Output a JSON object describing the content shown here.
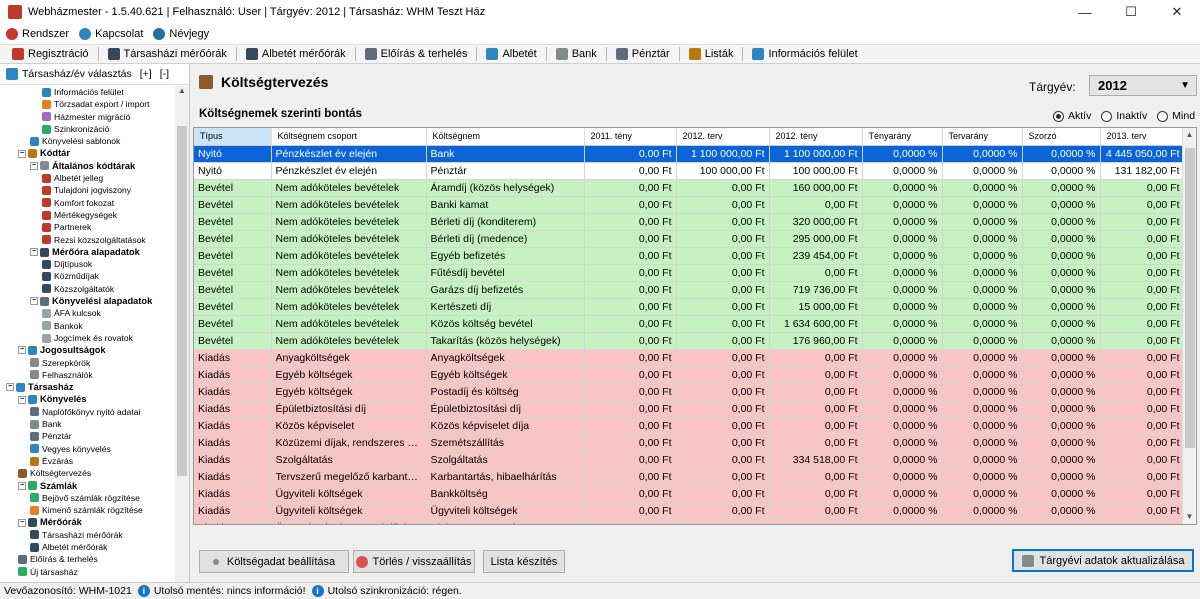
{
  "window": {
    "title": "Webházmester - 1.5.40.621 | Felhasználó: User | Tárgyév: 2012 | Társasház: WHM Teszt Ház",
    "minimize": "—",
    "maximize": "☐",
    "close": "✕"
  },
  "menu": [
    {
      "label": "Rendszer",
      "icon": "system-icon",
      "color": "#c0392b"
    },
    {
      "label": "Kapcsolat",
      "icon": "contact-icon",
      "color": "#2e86c1"
    },
    {
      "label": "Névjegy",
      "icon": "about-icon",
      "color": "#2471a3"
    }
  ],
  "toolbar": [
    {
      "label": "Regisztráció",
      "icon": "registration-icon",
      "color": "#c0392b"
    },
    {
      "label": "Társasházi mérőórák",
      "icon": "meter-icon",
      "color": "#34495e"
    },
    {
      "label": "Albetét mérőórák",
      "icon": "unit-meter-icon",
      "color": "#34495e"
    },
    {
      "label": "Előírás & terhelés",
      "icon": "charges-icon",
      "color": "#5d6d7e"
    },
    {
      "label": "Albetét",
      "icon": "unit-icon",
      "color": "#2e86c1"
    },
    {
      "label": "Bank",
      "icon": "bank-icon",
      "color": "#7f8c8d"
    },
    {
      "label": "Pénztár",
      "icon": "cashbox-icon",
      "color": "#5d6d7e"
    },
    {
      "label": "Listák",
      "icon": "lists-icon",
      "color": "#b9770e"
    },
    {
      "label": "Információs felület",
      "icon": "info-panel-icon",
      "color": "#2e86c1"
    }
  ],
  "left_panel": {
    "header": "Társasház/év  választás",
    "expand_btn": "[+]",
    "collapse_btn": "[-]",
    "tree": [
      {
        "label": "Információs felület",
        "level": 3,
        "color": "#2e86c1"
      },
      {
        "label": "Törzsadat export / import",
        "level": 3,
        "color": "#e67e22"
      },
      {
        "label": "Házmester migráció",
        "level": 3,
        "color": "#a569bd"
      },
      {
        "label": "Szinkronizáció",
        "level": 3,
        "color": "#27ae60"
      },
      {
        "label": "Könyvelési sablonok",
        "level": 2,
        "color": "#2e86c1"
      },
      {
        "label": "Kódtár",
        "level": 1,
        "bold": true,
        "color": "#b9770e"
      },
      {
        "label": "Általános kódtárak",
        "level": 2,
        "bold": true,
        "color": "#7f8c8d"
      },
      {
        "label": "Albetét jelleg",
        "level": 3,
        "color": "#c0392b"
      },
      {
        "label": "Tulajdoni jogviszony",
        "level": 3,
        "color": "#c0392b"
      },
      {
        "label": "Komfort fokozat",
        "level": 3,
        "color": "#c0392b"
      },
      {
        "label": "Mértékegységek",
        "level": 3,
        "color": "#c0392b"
      },
      {
        "label": "Partnerek",
        "level": 3,
        "color": "#c0392b"
      },
      {
        "label": "Rezsi közszolgáltatások",
        "level": 3,
        "color": "#c0392b"
      },
      {
        "label": "Mérőóra alapadatok",
        "level": 2,
        "bold": true,
        "color": "#34495e"
      },
      {
        "label": "Díjtípusok",
        "level": 3,
        "color": "#34495e"
      },
      {
        "label": "Közműdíjak",
        "level": 3,
        "color": "#34495e"
      },
      {
        "label": "Közszolgáltatók",
        "level": 3,
        "color": "#34495e"
      },
      {
        "label": "Könyvelési alapadatok",
        "level": 2,
        "bold": true,
        "color": "#5d6d7e"
      },
      {
        "label": "ÁFA kulcsok",
        "level": 3,
        "color": "#95a5a6"
      },
      {
        "label": "Bankok",
        "level": 3,
        "color": "#95a5a6"
      },
      {
        "label": "Jogcímek és rovatok",
        "level": 3,
        "color": "#95a5a6"
      },
      {
        "label": "Jogosultságok",
        "level": 1,
        "bold": true,
        "color": "#2e86c1"
      },
      {
        "label": "Szerepkörök",
        "level": 2,
        "color": "#7f8c8d"
      },
      {
        "label": "Felhasználók",
        "level": 2,
        "color": "#7f8c8d"
      },
      {
        "label": "Társasház",
        "level": 0,
        "bold": true,
        "color": "#2e86c1"
      },
      {
        "label": "Könyvelés",
        "level": 1,
        "bold": true,
        "color": "#2e86c1"
      },
      {
        "label": "Naplófőkönyv nyitó adatai",
        "level": 2,
        "color": "#5d6d7e"
      },
      {
        "label": "Bank",
        "level": 2,
        "color": "#7f8c8d"
      },
      {
        "label": "Pénztár",
        "level": 2,
        "color": "#5d6d7e"
      },
      {
        "label": "Vegyes könyvelés",
        "level": 2,
        "color": "#2e86c1"
      },
      {
        "label": "Évzárás",
        "level": 2,
        "color": "#b9770e"
      },
      {
        "label": "Költségtervezés",
        "level": 1,
        "color": "#8a5a2b"
      },
      {
        "label": "Számlák",
        "level": 1,
        "bold": true,
        "color": "#27ae60"
      },
      {
        "label": "Bejövő számlák rögzítése",
        "level": 2,
        "color": "#27ae60"
      },
      {
        "label": "Kimenő számlák rögzítése",
        "level": 2,
        "color": "#e67e22"
      },
      {
        "label": "Mérőórák",
        "level": 1,
        "bold": true,
        "color": "#34495e"
      },
      {
        "label": "Társasházi mérőórák",
        "level": 2,
        "color": "#34495e"
      },
      {
        "label": "Albetét mérőórák",
        "level": 2,
        "color": "#34495e"
      },
      {
        "label": "Előírás & terhelés",
        "level": 1,
        "color": "#5d6d7e"
      },
      {
        "label": "Új társasház",
        "level": 1,
        "color": "#27ae60"
      }
    ]
  },
  "main": {
    "title": "Költségtervezés",
    "year_label": "Tárgyév:",
    "year_value": "2012",
    "subtitle": "Költségnemek szerinti bontás",
    "radios": [
      {
        "label": "Aktív",
        "checked": true
      },
      {
        "label": "Inaktív",
        "checked": false
      },
      {
        "label": "Mind",
        "checked": false
      }
    ]
  },
  "grid": {
    "columns": [
      "Típus",
      "Költségnem csoport",
      "Költségnem",
      "2011. tény",
      "2012. terv",
      "2012. tény",
      "Tényarány",
      "Tervarány",
      "Szorzó",
      "2013. terv"
    ],
    "rows": [
      {
        "kind": "nyito",
        "selected": true,
        "cells": [
          "Nyitó",
          "Pénzkészlet év elején",
          "Bank",
          "0,00 Ft",
          "1 100 000,00 Ft",
          "1 100 000,00 Ft",
          "0,0000 %",
          "0,0000 %",
          "0,0000 %",
          "4 445 050,00 Ft"
        ]
      },
      {
        "kind": "nyito",
        "cells": [
          "Nyitó",
          "Pénzkészlet év elején",
          "Pénztár",
          "0,00 Ft",
          "100 000,00 Ft",
          "100 000,00 Ft",
          "0,0000 %",
          "0,0000 %",
          "0,0000 %",
          "131 182,00 Ft"
        ]
      },
      {
        "kind": "bevetel",
        "cells": [
          "Bevétel",
          "Nem adóköteles bevételek",
          "Áramdíj (közös helységek)",
          "0,00 Ft",
          "0,00 Ft",
          "160 000,00 Ft",
          "0,0000 %",
          "0,0000 %",
          "0,0000 %",
          "0,00 Ft"
        ]
      },
      {
        "kind": "bevetel",
        "cells": [
          "Bevétel",
          "Nem adóköteles bevételek",
          "Banki kamat",
          "0,00 Ft",
          "0,00 Ft",
          "0,00 Ft",
          "0,0000 %",
          "0,0000 %",
          "0,0000 %",
          "0,00 Ft"
        ]
      },
      {
        "kind": "bevetel",
        "cells": [
          "Bevétel",
          "Nem adóköteles bevételek",
          "Bérleti díj (konditerem)",
          "0,00 Ft",
          "0,00 Ft",
          "320 000,00 Ft",
          "0,0000 %",
          "0,0000 %",
          "0,0000 %",
          "0,00 Ft"
        ]
      },
      {
        "kind": "bevetel",
        "cells": [
          "Bevétel",
          "Nem adóköteles bevételek",
          "Bérleti díj (medence)",
          "0,00 Ft",
          "0,00 Ft",
          "295 000,00 Ft",
          "0,0000 %",
          "0,0000 %",
          "0,0000 %",
          "0,00 Ft"
        ]
      },
      {
        "kind": "bevetel",
        "cells": [
          "Bevétel",
          "Nem adóköteles bevételek",
          "Egyéb befizetés",
          "0,00 Ft",
          "0,00 Ft",
          "239 454,00 Ft",
          "0,0000 %",
          "0,0000 %",
          "0,0000 %",
          "0,00 Ft"
        ]
      },
      {
        "kind": "bevetel",
        "cells": [
          "Bevétel",
          "Nem adóköteles bevételek",
          "Fűtésdíj bevétel",
          "0,00 Ft",
          "0,00 Ft",
          "0,00 Ft",
          "0,0000 %",
          "0,0000 %",
          "0,0000 %",
          "0,00 Ft"
        ]
      },
      {
        "kind": "bevetel",
        "cells": [
          "Bevétel",
          "Nem adóköteles bevételek",
          "Garázs díj befizetés",
          "0,00 Ft",
          "0,00 Ft",
          "719 736,00 Ft",
          "0,0000 %",
          "0,0000 %",
          "0,0000 %",
          "0,00 Ft"
        ]
      },
      {
        "kind": "bevetel",
        "cells": [
          "Bevétel",
          "Nem adóköteles bevételek",
          "Kertészeti díj",
          "0,00 Ft",
          "0,00 Ft",
          "15 000,00 Ft",
          "0,0000 %",
          "0,0000 %",
          "0,0000 %",
          "0,00 Ft"
        ]
      },
      {
        "kind": "bevetel",
        "cells": [
          "Bevétel",
          "Nem adóköteles bevételek",
          "Közös költség bevétel",
          "0,00 Ft",
          "0,00 Ft",
          "1 634 600,00 Ft",
          "0,0000 %",
          "0,0000 %",
          "0,0000 %",
          "0,00 Ft"
        ]
      },
      {
        "kind": "bevetel",
        "cells": [
          "Bevétel",
          "Nem adóköteles bevételek",
          "Takarítás (közös helységek)",
          "0,00 Ft",
          "0,00 Ft",
          "176 960,00 Ft",
          "0,0000 %",
          "0,0000 %",
          "0,0000 %",
          "0,00 Ft"
        ]
      },
      {
        "kind": "kiadas",
        "cells": [
          "Kiadás",
          "Anyagköltségek",
          "Anyagköltségek",
          "0,00 Ft",
          "0,00 Ft",
          "0,00 Ft",
          "0,0000 %",
          "0,0000 %",
          "0,0000 %",
          "0,00 Ft"
        ]
      },
      {
        "kind": "kiadas",
        "cells": [
          "Kiadás",
          "Egyéb költségek",
          "Egyéb költségek",
          "0,00 Ft",
          "0,00 Ft",
          "0,00 Ft",
          "0,0000 %",
          "0,0000 %",
          "0,0000 %",
          "0,00 Ft"
        ]
      },
      {
        "kind": "kiadas",
        "cells": [
          "Kiadás",
          "Egyéb költségek",
          "Postadíj és költség",
          "0,00 Ft",
          "0,00 Ft",
          "0,00 Ft",
          "0,0000 %",
          "0,0000 %",
          "0,0000 %",
          "0,00 Ft"
        ]
      },
      {
        "kind": "kiadas",
        "cells": [
          "Kiadás",
          "Épületbiztosítási díj",
          "Épületbiztosítási díj",
          "0,00 Ft",
          "0,00 Ft",
          "0,00 Ft",
          "0,0000 %",
          "0,0000 %",
          "0,0000 %",
          "0,00 Ft"
        ]
      },
      {
        "kind": "kiadas",
        "cells": [
          "Kiadás",
          "Közös képviselet",
          "Közös képviselet díja",
          "0,00 Ft",
          "0,00 Ft",
          "0,00 Ft",
          "0,0000 %",
          "0,0000 %",
          "0,0000 %",
          "0,00 Ft"
        ]
      },
      {
        "kind": "kiadas",
        "cells": [
          "Kiadás",
          "Közüzemi díjak, rendszeres köl...",
          "Szemétszállítás",
          "0,00 Ft",
          "0,00 Ft",
          "0,00 Ft",
          "0,0000 %",
          "0,0000 %",
          "0,0000 %",
          "0,00 Ft"
        ]
      },
      {
        "kind": "kiadas",
        "cells": [
          "Kiadás",
          "Szolgáltatás",
          "Szolgáltatás",
          "0,00 Ft",
          "0,00 Ft",
          "334 518,00 Ft",
          "0,0000 %",
          "0,0000 %",
          "0,0000 %",
          "0,00 Ft"
        ]
      },
      {
        "kind": "kiadas",
        "cells": [
          "Kiadás",
          "Tervszerű megelőző karbantar...",
          "Karbantartás, hibaelhárítás",
          "0,00 Ft",
          "0,00 Ft",
          "0,00 Ft",
          "0,0000 %",
          "0,0000 %",
          "0,0000 %",
          "0,00 Ft"
        ]
      },
      {
        "kind": "kiadas",
        "cells": [
          "Kiadás",
          "Ügyviteli költségek",
          "Bankköltség",
          "0,00 Ft",
          "0,00 Ft",
          "0,00 Ft",
          "0,0000 %",
          "0,0000 %",
          "0,0000 %",
          "0,00 Ft"
        ]
      },
      {
        "kind": "kiadas",
        "cells": [
          "Kiadás",
          "Ügyviteli költségek",
          "Ügyviteli költségek",
          "0,00 Ft",
          "0,00 Ft",
          "0,00 Ft",
          "0,0000 %",
          "0,0000 %",
          "0,0000 %",
          "0,00 Ft"
        ]
      },
      {
        "kind": "kiadas",
        "cells": [
          "Kiadás",
          "Üzemeltetés, közüzemi díjak",
          "Elektromos energia",
          "0,00 Ft",
          "0,00 Ft",
          "0,00 Ft",
          "0,0000 %",
          "0,0000 %",
          "0,0000 %",
          "0,00 Ft"
        ]
      }
    ]
  },
  "buttons": {
    "set_cost": "Költségadat beállítása",
    "delete_reset": "Törlés / visszaállítás",
    "make_list": "Lista készítés",
    "update_year": "Tárgyévi adatok aktualizálása"
  },
  "status": {
    "device_id": "Vevőazonosító: WHM-1021",
    "last_save": "Utolsó mentés: nincs információ!",
    "last_sync": "Utolsó szinkronizáció: régen."
  }
}
